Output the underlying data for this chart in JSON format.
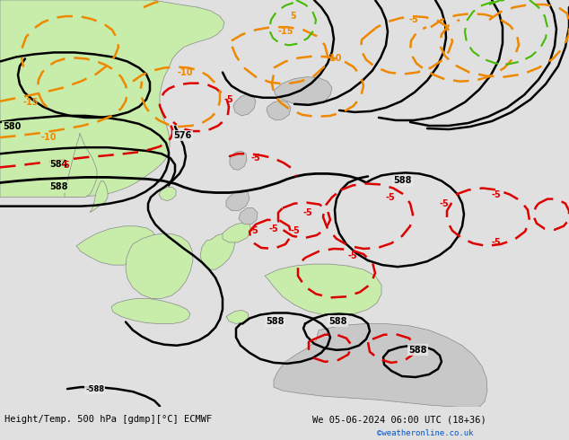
{
  "title_left": "Height/Temp. 500 hPa [gdmp][°C] ECMWF",
  "title_right": "We 05-06-2024 06:00 UTC (18+36)",
  "credit": "©weatheronline.co.uk",
  "bg_color": "#e0e0e0",
  "land_green": "#c8edaa",
  "land_gray": "#c8c8c8",
  "ocean_color": "#e8e8e8",
  "bottom_bar_color": "#ffffff",
  "text_color": "#000000",
  "credit_color": "#0055cc",
  "geo_color": "#000000",
  "temp_red": "#dd0000",
  "temp_orange": "#ee8800",
  "temp_green": "#44bb00",
  "figsize": [
    6.34,
    4.9
  ],
  "dpi": 100
}
